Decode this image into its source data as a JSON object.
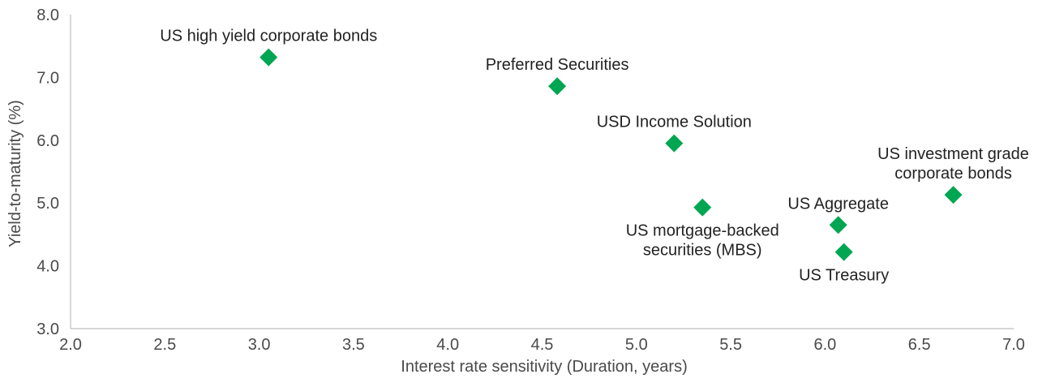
{
  "chart_data": {
    "type": "scatter",
    "title": "",
    "xlabel": "Interest rate sensitivity (Duration, years)",
    "ylabel": "Yield-to-maturity (%)",
    "xlim": [
      2.0,
      7.0
    ],
    "ylim": [
      3.0,
      8.0
    ],
    "x_ticks": [
      "2.0",
      "2.5",
      "3.0",
      "3.5",
      "4.0",
      "4.5",
      "5.0",
      "5.5",
      "6.0",
      "6.5",
      "7.0"
    ],
    "y_ticks": [
      "3.0",
      "4.0",
      "5.0",
      "6.0",
      "7.0",
      "8.0"
    ],
    "grid": false,
    "marker": "diamond",
    "colors": {
      "marker": "#00a651",
      "axis": "#bdbdbd",
      "text": "#4a4a4a"
    },
    "points": [
      {
        "name": "US high yield corporate bonds",
        "lines": [
          "US high yield corporate bonds"
        ],
        "x": 3.05,
        "y": 7.32,
        "label_pos": "above"
      },
      {
        "name": "Preferred Securities",
        "lines": [
          "Preferred Securities"
        ],
        "x": 4.58,
        "y": 6.86,
        "label_pos": "above"
      },
      {
        "name": "USD Income Solution",
        "lines": [
          "USD Income Solution"
        ],
        "x": 5.2,
        "y": 5.95,
        "label_pos": "above"
      },
      {
        "name": "US mortgage-backed securities (MBS)",
        "lines": [
          "US mortgage-backed",
          "securities (MBS)"
        ],
        "x": 5.35,
        "y": 4.93,
        "label_pos": "below"
      },
      {
        "name": "US Aggregate",
        "lines": [
          "US Aggregate"
        ],
        "x": 6.07,
        "y": 4.65,
        "label_pos": "above"
      },
      {
        "name": "US Treasury",
        "lines": [
          "US Treasury"
        ],
        "x": 6.1,
        "y": 4.22,
        "label_pos": "below"
      },
      {
        "name": "US investment grade corporate bonds",
        "lines": [
          "US investment grade",
          "corporate bonds"
        ],
        "x": 6.68,
        "y": 5.13,
        "label_pos": "above"
      }
    ]
  }
}
